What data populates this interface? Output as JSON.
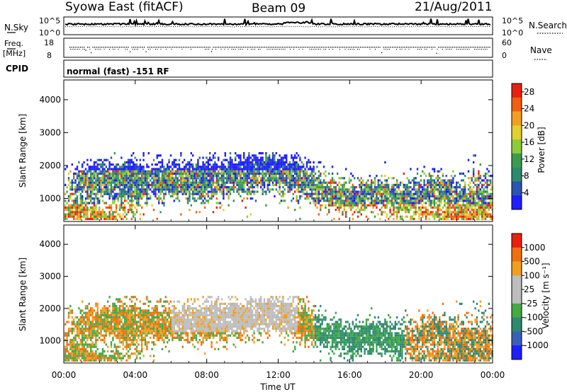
{
  "header": {
    "title": "Syowa East (fitACF)",
    "beam": "Beam 09",
    "date": "21/Aug/2011"
  },
  "noise_panel": {
    "left_label": "N.Sky",
    "right_label": "N.Search",
    "left_ticks": [
      "10^5",
      "10^0"
    ],
    "right_ticks": [
      "10^5",
      "10^0"
    ]
  },
  "freq_panel": {
    "left_label_1": "Freq.",
    "left_label_2": "[MHz]",
    "right_label": "Nave",
    "left_ticks": [
      "18",
      "8"
    ],
    "right_ticks": [
      "60",
      "0"
    ]
  },
  "cpid": {
    "label": "CPID",
    "text": "normal (fast) -151 RF"
  },
  "colors": {
    "power_scale": [
      "#1e1eff",
      "#2a55b0",
      "#2e8a6e",
      "#3d9b4f",
      "#8ecb3a",
      "#e0d030",
      "#f0a020",
      "#f06010",
      "#e82010"
    ],
    "velocity_scale": [
      "#1e1eff",
      "#3a5fb8",
      "#2e8a6e",
      "#44aa44",
      "#bdbdbd",
      "#bdbdbd",
      "#f0a020",
      "#f07010",
      "#e82010"
    ]
  },
  "chart_data": [
    {
      "type": "heatmap",
      "name": "power",
      "ylabel": "Slant Range [km]",
      "y_ticks": [
        "1000",
        "2000",
        "3000",
        "4000"
      ],
      "ylim": [
        300,
        4600
      ],
      "colorbar_label": "Power [dB]",
      "colorbar_ticks": [
        "4",
        "8",
        "12",
        "16",
        "20",
        "24",
        "28"
      ],
      "colorbar_range": [
        0,
        30
      ]
    },
    {
      "type": "heatmap",
      "name": "velocity",
      "ylabel": "Slant Range [km]",
      "y_ticks": [
        "1000",
        "2000",
        "3000",
        "4000"
      ],
      "ylim": [
        300,
        4600
      ],
      "colorbar_label": "Velocity [m s⁻¹]",
      "colorbar_ticks": [
        "1000",
        "500",
        "100",
        "25",
        "-25",
        "-100",
        "-500",
        "-1000"
      ]
    }
  ],
  "x_axis": {
    "label": "Time UT",
    "ticks": [
      "00:00",
      "04:00",
      "08:00",
      "12:00",
      "16:00",
      "20:00",
      "00:00"
    ],
    "range_hours": [
      0,
      24
    ]
  }
}
